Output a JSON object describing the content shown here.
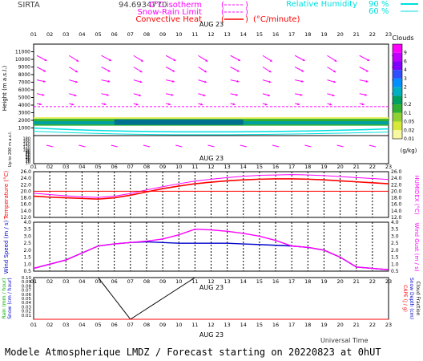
{
  "header": {
    "site": "SIRTA",
    "coords": "94.6934770",
    "legend_left": [
      {
        "label": "0°C isotherm",
        "color": "#ff00ff",
        "style": "dashed"
      },
      {
        "label": "Snow-Rain Limit",
        "color": "#ff00ff",
        "style": "dashed"
      },
      {
        "label": "Convective Heat",
        "color": "#ff0000",
        "style": "solid"
      }
    ],
    "convective_unit": "(°C/minute)",
    "legend_right": [
      {
        "label": "Relative Humidity",
        "value": "90 %",
        "color": "#00e0e0"
      },
      {
        "label": "",
        "value": "60 %",
        "color": "#00e0e0"
      }
    ]
  },
  "hours": [
    "01",
    "02",
    "03",
    "04",
    "05",
    "06",
    "07",
    "08",
    "09",
    "10",
    "11",
    "12",
    "13",
    "14",
    "15",
    "16",
    "17",
    "18",
    "19",
    "20",
    "21",
    "22",
    "23"
  ],
  "date_label": "AUG 23",
  "footer": {
    "universal_time": "Universal Time",
    "model_text": "Modele Atmospherique LMDZ / Forecast starting on 20220823 at 0hUT"
  },
  "colors": {
    "magenta": "#ff00ff",
    "red": "#ff0000",
    "blue": "#0000cc",
    "cyan": "#00e0e0",
    "green": "#00b000"
  },
  "chart_data": [
    {
      "type": "heatmap",
      "name": "clouds-wind-profile",
      "ylabel": "Height  (m a.s.l.)",
      "ylabel_low": "Up to 200 m a.s.l.",
      "yticks": [
        1000,
        2000,
        3000,
        4000,
        5000,
        6000,
        7000,
        8000,
        9000,
        10000,
        11000
      ],
      "yticks_low": [
        10,
        20,
        30,
        40,
        50,
        60,
        70,
        80,
        90,
        100,
        120,
        140,
        160,
        180
      ],
      "isotherm_height_m": 3800,
      "cloud_layer_m": [
        1300,
        2200
      ],
      "colorbar": {
        "title": "Clouds",
        "unit": "(g/kg)",
        "labels": [
          "9",
          "6",
          "4",
          "3",
          "2",
          "1",
          "0.2",
          "0.1",
          "0.05",
          "0.02",
          "0.01"
        ],
        "colors": [
          "#ff00ff",
          "#c000ff",
          "#8000ff",
          "#3050ff",
          "#0090ff",
          "#00b0c0",
          "#00a060",
          "#30b030",
          "#90d030",
          "#d8e838",
          "#f8f8a0"
        ]
      }
    },
    {
      "type": "line",
      "name": "temperature-humidex",
      "ylabel_left": "Temperature (°C)",
      "ylabel_right": "HUMIDEX (°C)",
      "yticks": [
        12.0,
        14.0,
        16.0,
        18.0,
        20.0,
        22.0,
        24.0,
        26.0
      ],
      "ylim": [
        12,
        26
      ],
      "series": [
        {
          "color": "#ff0000",
          "values": [
            18.5,
            18.2,
            18.0,
            17.8,
            17.6,
            18.0,
            18.8,
            19.8,
            20.8,
            21.6,
            22.3,
            22.8,
            23.2,
            23.5,
            23.7,
            23.8,
            23.8,
            23.7,
            23.5,
            23.2,
            22.9,
            22.6,
            22.3
          ]
        },
        {
          "color": "#ff00ff",
          "values": [
            19.4,
            19.0,
            18.6,
            18.3,
            18.1,
            18.5,
            19.3,
            20.4,
            21.4,
            22.3,
            23.1,
            23.7,
            24.2,
            24.6,
            24.9,
            25.0,
            25.1,
            25.0,
            24.8,
            24.5,
            24.2,
            23.9,
            23.6
          ]
        },
        {
          "color": "#ff0000",
          "values": [
            20.0,
            20.0,
            20.0,
            20.0,
            20.0,
            20.0,
            20.0,
            20.0,
            20.0,
            20.0,
            20.0,
            20.0,
            20.0,
            20.0,
            20.0,
            20.0,
            20.0,
            20.0,
            20.0,
            20.0,
            20.0,
            20.0,
            20.0
          ]
        }
      ]
    },
    {
      "type": "line",
      "name": "wind-speed-gust",
      "ylabel_left": "Wind Speed (m / s)",
      "ylabel_right": "Wind Gust (m / s)",
      "yticks": [
        0.5,
        1.0,
        1.5,
        2.0,
        2.5,
        3.0,
        3.5,
        4.0
      ],
      "ylim": [
        0.5,
        4.0
      ],
      "series": [
        {
          "color": "#0000cc",
          "values": [
            0.7,
            1.0,
            1.3,
            1.8,
            2.3,
            2.45,
            2.55,
            2.6,
            2.55,
            2.5,
            2.5,
            2.5,
            2.5,
            2.45,
            2.4,
            2.35,
            2.3,
            2.2,
            2.0,
            1.5,
            0.8,
            0.7,
            0.6
          ]
        },
        {
          "color": "#ff00ff",
          "values": [
            0.7,
            1.0,
            1.3,
            1.8,
            2.3,
            2.45,
            2.55,
            2.65,
            2.8,
            3.1,
            3.5,
            3.45,
            3.35,
            3.2,
            3.0,
            2.7,
            2.3,
            2.2,
            2.0,
            1.5,
            0.8,
            0.7,
            0.6
          ]
        }
      ]
    },
    {
      "type": "line",
      "name": "precipitation",
      "ylabel_left": "Rain (mm / hour)",
      "ylabel_left2": "Snow (cm / hour)",
      "ylabel_right": "CAPE (J / g)",
      "ylabel_right2": "Snow Depth (cm)",
      "ylabel_right3": "Cloud Fraction",
      "yticks": [
        0.01,
        0.02,
        0.03,
        0.04,
        0.05,
        0.06,
        0.07,
        0.08,
        0.09,
        0.1
      ],
      "ylim": [
        0,
        0.1
      ],
      "series": [
        {
          "color": "#000000",
          "values": [
            0.1,
            0.1,
            0.1,
            0.1,
            0.1,
            0.05,
            0.0,
            0.025,
            0.05,
            0.075,
            0.1,
            0.1,
            0.1,
            0.1,
            0.1,
            0.1,
            0.1,
            0.1,
            0.1,
            0.1,
            0.1,
            0.1,
            0.1
          ]
        },
        {
          "color": "#ff0000",
          "values": [
            0.0,
            0.0,
            0.0,
            0.0,
            0.0,
            0.0,
            0.0,
            0.0,
            0.0,
            0.0,
            0.0,
            0.0,
            0.0,
            0.0,
            0.0,
            0.0,
            0.0,
            0.0,
            0.0,
            0.0,
            0.0,
            0.0,
            0.0
          ]
        }
      ]
    }
  ]
}
